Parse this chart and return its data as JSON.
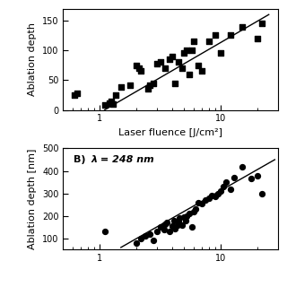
{
  "panel_A": {
    "ylabel": "Ablation depth",
    "xlabel": "Laser fluence [J/cm²]",
    "xlim": [
      0.5,
      30
    ],
    "ylim": [
      0,
      170
    ],
    "yticks": [
      0,
      50,
      100,
      150
    ],
    "fit_x": [
      1.1,
      25
    ],
    "fit_y": [
      0,
      160
    ],
    "scatter_x": [
      0.62,
      0.65,
      1.1,
      1.2,
      1.25,
      1.3,
      1.35,
      1.5,
      1.8,
      2.0,
      2.1,
      2.2,
      2.5,
      2.6,
      2.8,
      3.0,
      3.2,
      3.5,
      3.8,
      4.0,
      4.2,
      4.5,
      4.8,
      5.0,
      5.2,
      5.5,
      5.8,
      6.0,
      6.5,
      7.0,
      8.0,
      9.0,
      10.0,
      12.0,
      15.0,
      20.0,
      22.0
    ],
    "scatter_y": [
      25,
      28,
      8,
      12,
      15,
      10,
      25,
      38,
      42,
      75,
      70,
      65,
      35,
      42,
      45,
      78,
      80,
      70,
      85,
      90,
      45,
      80,
      70,
      95,
      100,
      60,
      100,
      115,
      75,
      65,
      115,
      125,
      95,
      125,
      140,
      120,
      145
    ]
  },
  "panel_B": {
    "label_B": "B)  ",
    "label_lambda": "λ = 248 nm",
    "ylabel": "Ablation depth [nm]",
    "xlim": [
      0.5,
      30
    ],
    "ylim": [
      50,
      500
    ],
    "yticks": [
      100,
      200,
      300,
      400,
      500
    ],
    "fit_x": [
      1.5,
      28
    ],
    "fit_y": [
      60,
      450
    ],
    "scatter_x": [
      1.1,
      2.0,
      2.2,
      2.4,
      2.6,
      2.8,
      3.0,
      3.2,
      3.4,
      3.5,
      3.6,
      3.8,
      4.0,
      4.1,
      4.2,
      4.4,
      4.5,
      4.6,
      4.8,
      5.0,
      5.1,
      5.2,
      5.5,
      5.8,
      6.0,
      6.2,
      6.5,
      7.0,
      7.5,
      8.0,
      8.5,
      9.0,
      9.5,
      10.0,
      10.5,
      11.0,
      12.0,
      13.0,
      15.0,
      18.0,
      20.0,
      22.0
    ],
    "scatter_y": [
      130,
      80,
      100,
      110,
      120,
      90,
      130,
      150,
      140,
      165,
      170,
      130,
      155,
      180,
      145,
      160,
      175,
      190,
      160,
      195,
      180,
      200,
      210,
      150,
      220,
      230,
      260,
      255,
      270,
      280,
      290,
      285,
      300,
      310,
      330,
      350,
      320,
      370,
      420,
      365,
      380,
      300
    ]
  },
  "marker_color": "#000000",
  "line_color": "#000000",
  "background": "#ffffff"
}
